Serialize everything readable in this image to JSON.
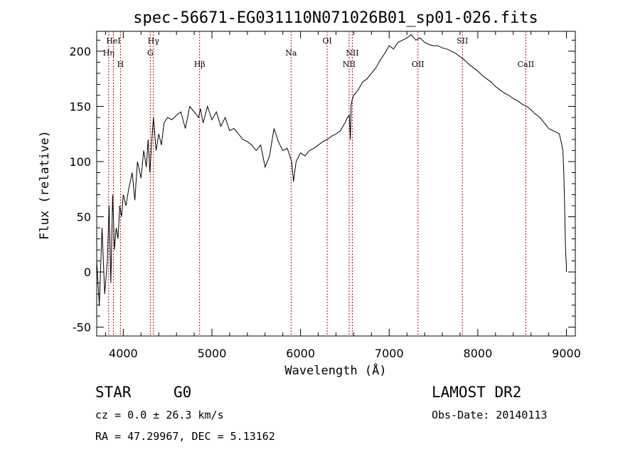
{
  "chart_data": {
    "type": "line",
    "title": "spec-56671-EG031110N071026B01_sp01-026.fits",
    "xlabel": "Wavelength (Å)",
    "ylabel": "Flux (relative)",
    "xlim": [
      3700,
      9100
    ],
    "ylim": [
      -58,
      218
    ],
    "xticks": [
      4000,
      5000,
      6000,
      7000,
      8000,
      9000
    ],
    "yticks": [
      -50,
      0,
      50,
      100,
      150,
      200
    ],
    "grid": false,
    "series": [
      {
        "color": "#000000",
        "x": [
          3700,
          3730,
          3760,
          3790,
          3820,
          3840,
          3860,
          3880,
          3900,
          3920,
          3940,
          3960,
          3980,
          4000,
          4030,
          4060,
          4100,
          4130,
          4160,
          4200,
          4230,
          4260,
          4280,
          4300,
          4320,
          4340,
          4370,
          4400,
          4430,
          4460,
          4500,
          4550,
          4600,
          4650,
          4700,
          4750,
          4800,
          4850,
          4870,
          4900,
          4950,
          5000,
          5050,
          5100,
          5150,
          5200,
          5250,
          5300,
          5350,
          5400,
          5450,
          5500,
          5550,
          5600,
          5650,
          5700,
          5750,
          5800,
          5850,
          5900,
          5920,
          5950,
          6000,
          6050,
          6100,
          6150,
          6200,
          6250,
          6300,
          6350,
          6400,
          6450,
          6500,
          6530,
          6550,
          6562,
          6570,
          6580,
          6600,
          6650,
          6700,
          6750,
          6800,
          6850,
          6900,
          6950,
          7000,
          7050,
          7100,
          7150,
          7200,
          7250,
          7300,
          7350,
          7400,
          7450,
          7500,
          7550,
          7600,
          7650,
          7700,
          7750,
          7800,
          7850,
          7900,
          7950,
          8000,
          8050,
          8100,
          8150,
          8200,
          8250,
          8300,
          8350,
          8400,
          8450,
          8500,
          8550,
          8600,
          8650,
          8700,
          8750,
          8800,
          8850,
          8900,
          8920,
          8940,
          8960,
          8970,
          8980,
          8990,
          9000,
          9000
        ],
        "y": [
          10,
          -30,
          40,
          -20,
          10,
          60,
          -10,
          70,
          20,
          40,
          30,
          60,
          50,
          70,
          60,
          75,
          90,
          65,
          100,
          85,
          110,
          95,
          120,
          90,
          118,
          140,
          110,
          125,
          115,
          135,
          140,
          138,
          142,
          145,
          130,
          150,
          145,
          140,
          148,
          135,
          150,
          138,
          145,
          132,
          140,
          128,
          130,
          125,
          120,
          118,
          115,
          110,
          115,
          95,
          105,
          130,
          118,
          110,
          112,
          100,
          82,
          100,
          108,
          105,
          110,
          112,
          115,
          118,
          120,
          123,
          125,
          128,
          135,
          140,
          142,
          120,
          150,
          155,
          160,
          165,
          172,
          175,
          180,
          185,
          192,
          198,
          205,
          202,
          208,
          210,
          212,
          215,
          210,
          212,
          208,
          206,
          205,
          205,
          203,
          202,
          200,
          198,
          195,
          192,
          188,
          185,
          182,
          178,
          175,
          172,
          168,
          165,
          162,
          160,
          157,
          155,
          152,
          150,
          147,
          143,
          140,
          135,
          130,
          128,
          126,
          125,
          118,
          110,
          90,
          60,
          20,
          5,
          0
        ]
      }
    ],
    "emission_lines": [
      {
        "label": "HeI",
        "x": 3889,
        "row": 1,
        "color": "#cc0000"
      },
      {
        "label": "Hη",
        "x": 3835,
        "row": 2,
        "color": "#cc0000"
      },
      {
        "label": "H",
        "x": 3968,
        "row": 3,
        "color": "#cc0000"
      },
      {
        "label": "Hγ",
        "x": 4340,
        "row": 1,
        "color": "#cc0000"
      },
      {
        "label": "G",
        "x": 4305,
        "row": 2,
        "color": "#cc0000"
      },
      {
        "label": "Hβ",
        "x": 4861,
        "row": 3,
        "color": "#cc0000"
      },
      {
        "label": "Na",
        "x": 5893,
        "row": 2,
        "color": "#cc0000"
      },
      {
        "label": "OI",
        "x": 6300,
        "row": 1,
        "color": "#cc0000"
      },
      {
        "label": "NII",
        "x": 6584,
        "row": 2,
        "color": "#cc0000"
      },
      {
        "label": "NII",
        "x": 6548,
        "row": 3,
        "color": "#cc0000"
      },
      {
        "label": "OII",
        "x": 7325,
        "row": 3,
        "color": "#cc0000"
      },
      {
        "label": "SII",
        "x": 7826,
        "row": 1,
        "color": "#cc0000"
      },
      {
        "label": "CaII",
        "x": 8542,
        "row": 3,
        "color": "#cc0000"
      }
    ]
  },
  "footer": {
    "object_class": "STAR",
    "subclass": "G0",
    "survey": "LAMOST DR2",
    "redshift_text": "cz =  0.0 ± 26.3 km/s",
    "obs_date": "Obs-Date: 20140113",
    "coords": "RA =  47.29967, DEC =   5.13162"
  }
}
